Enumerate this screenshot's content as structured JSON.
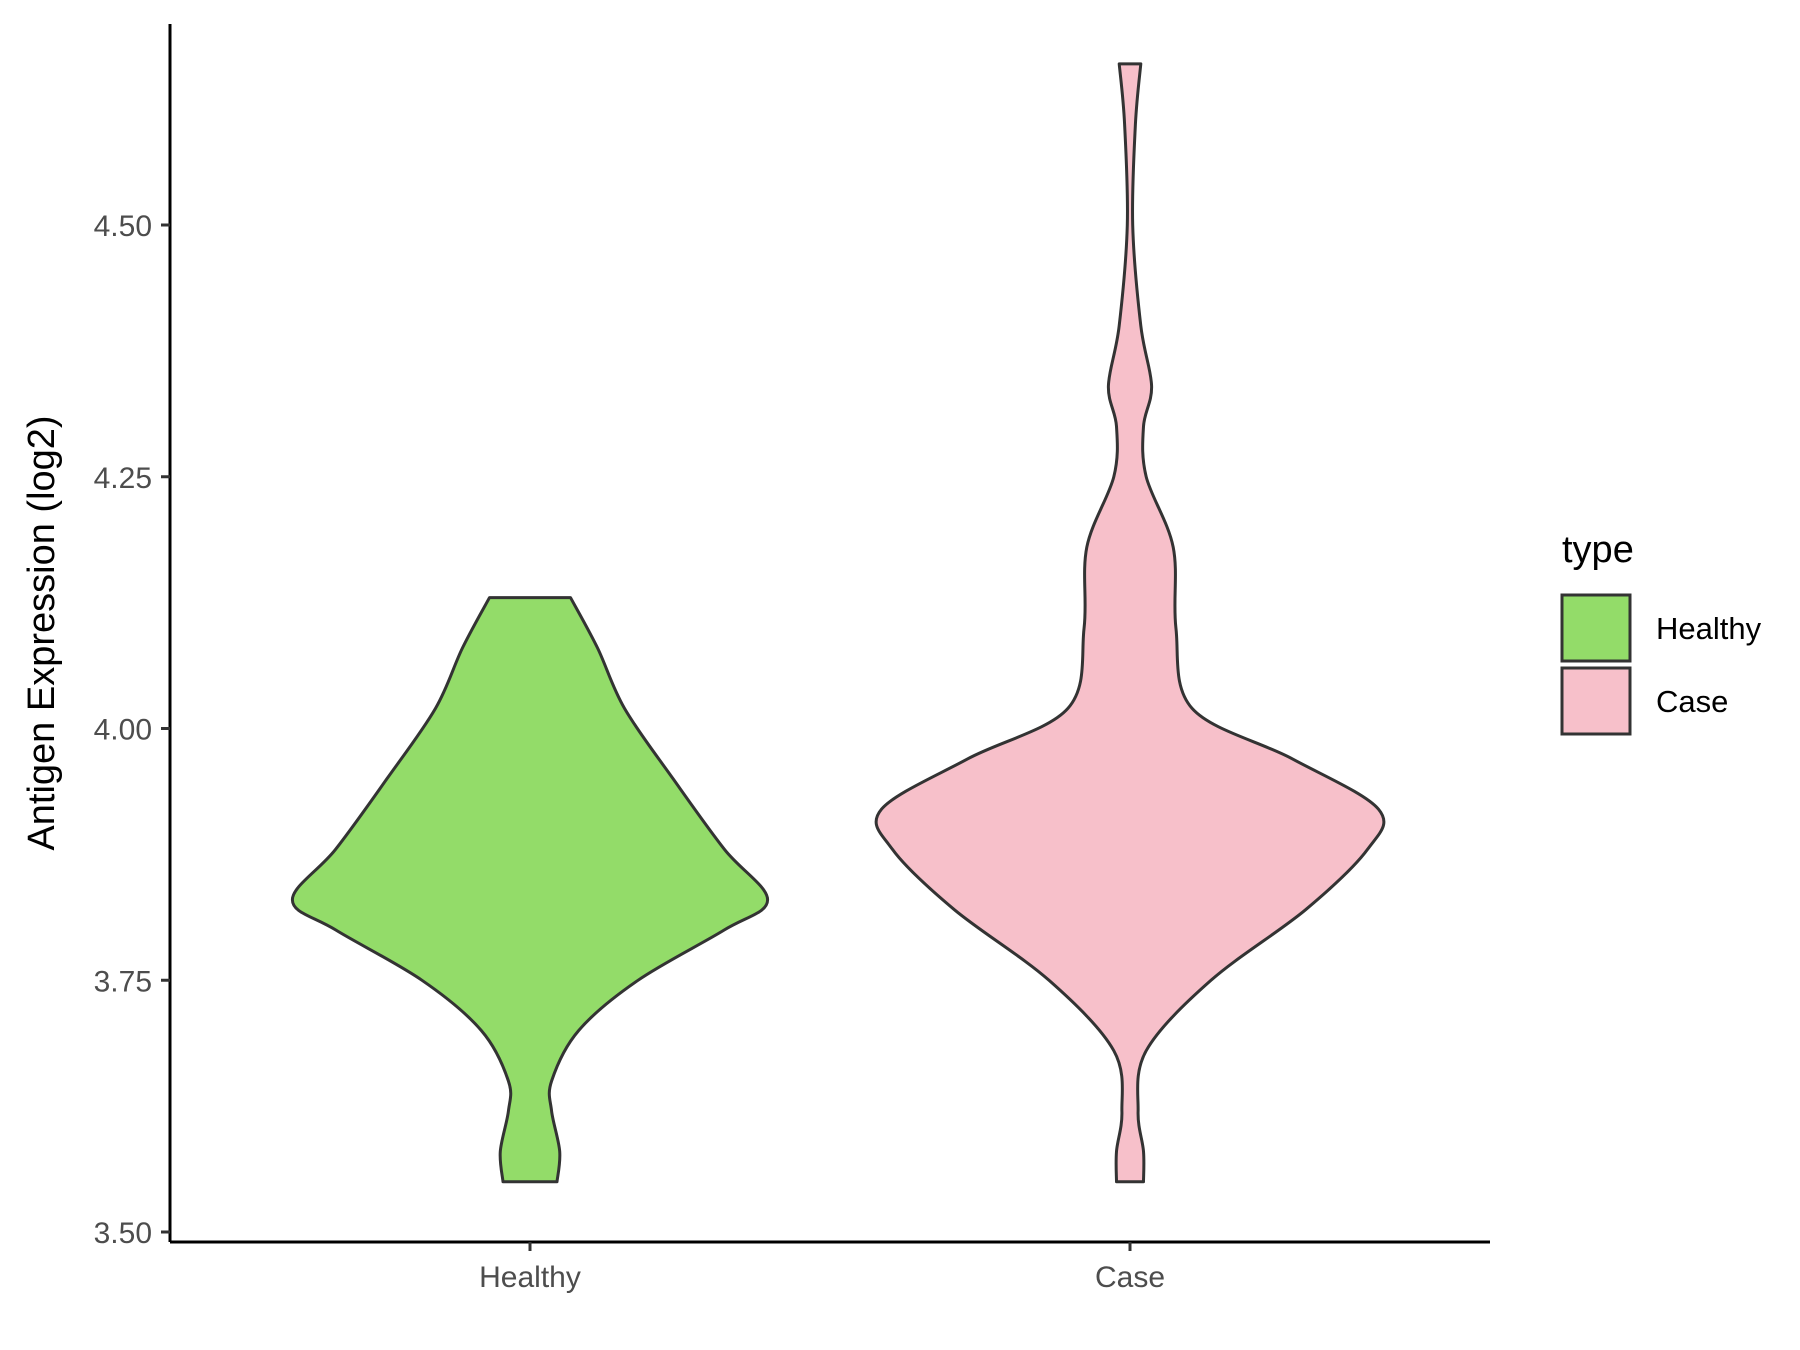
{
  "chart_data": {
    "type": "violin",
    "title": "",
    "xlabel": "",
    "ylabel": "Antigen Expression (log2)",
    "ylim": [
      3.5,
      4.7
    ],
    "yticks": [
      "3.50",
      "3.75",
      "4.00",
      "4.25",
      "4.50"
    ],
    "categories": [
      "Healthy",
      "Case"
    ],
    "legend": {
      "title": "type",
      "position": "right",
      "entries": [
        "Healthy",
        "Case"
      ]
    },
    "grid": false,
    "series": [
      {
        "name": "Healthy",
        "color": "#93dc69",
        "y_range": [
          3.55,
          4.13
        ],
        "density_profile": [
          {
            "y": 3.55,
            "halfwidth": 0.1
          },
          {
            "y": 3.58,
            "halfwidth": 0.11
          },
          {
            "y": 3.62,
            "halfwidth": 0.08
          },
          {
            "y": 3.65,
            "halfwidth": 0.08
          },
          {
            "y": 3.7,
            "halfwidth": 0.18
          },
          {
            "y": 3.75,
            "halfwidth": 0.4
          },
          {
            "y": 3.8,
            "halfwidth": 0.72
          },
          {
            "y": 3.83,
            "halfwidth": 0.88
          },
          {
            "y": 3.88,
            "halfwidth": 0.72
          },
          {
            "y": 3.95,
            "halfwidth": 0.53
          },
          {
            "y": 4.02,
            "halfwidth": 0.35
          },
          {
            "y": 4.08,
            "halfwidth": 0.25
          },
          {
            "y": 4.13,
            "halfwidth": 0.15
          }
        ]
      },
      {
        "name": "Case",
        "color": "#f7c0ca",
        "y_range": [
          3.55,
          4.66
        ],
        "density_profile": [
          {
            "y": 3.55,
            "halfwidth": 0.05
          },
          {
            "y": 3.58,
            "halfwidth": 0.05
          },
          {
            "y": 3.62,
            "halfwidth": 0.03
          },
          {
            "y": 3.68,
            "halfwidth": 0.06
          },
          {
            "y": 3.75,
            "halfwidth": 0.3
          },
          {
            "y": 3.82,
            "halfwidth": 0.65
          },
          {
            "y": 3.88,
            "halfwidth": 0.88
          },
          {
            "y": 3.92,
            "halfwidth": 0.92
          },
          {
            "y": 3.97,
            "halfwidth": 0.6
          },
          {
            "y": 4.02,
            "halfwidth": 0.23
          },
          {
            "y": 4.1,
            "halfwidth": 0.17
          },
          {
            "y": 4.18,
            "halfwidth": 0.16
          },
          {
            "y": 4.25,
            "halfwidth": 0.06
          },
          {
            "y": 4.3,
            "halfwidth": 0.05
          },
          {
            "y": 4.34,
            "halfwidth": 0.08
          },
          {
            "y": 4.4,
            "halfwidth": 0.04
          },
          {
            "y": 4.5,
            "halfwidth": 0.01
          },
          {
            "y": 4.6,
            "halfwidth": 0.02
          },
          {
            "y": 4.66,
            "halfwidth": 0.04
          }
        ]
      }
    ]
  }
}
